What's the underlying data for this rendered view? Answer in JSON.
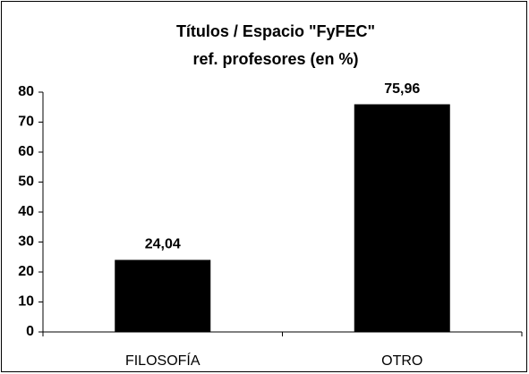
{
  "chart_data": {
    "type": "bar",
    "title": [
      "Títulos / Espacio \"FyFEC\"",
      "ref. profesores (en %)"
    ],
    "categories": [
      "FILOSOFÍA",
      "OTRO"
    ],
    "values": [
      24.04,
      75.96
    ],
    "value_labels": [
      "24,04",
      "75,96"
    ],
    "color": "#000000",
    "ylim": [
      0,
      80
    ],
    "yticks": [
      0,
      10,
      20,
      30,
      40,
      50,
      60,
      70,
      80
    ],
    "grid": false
  }
}
